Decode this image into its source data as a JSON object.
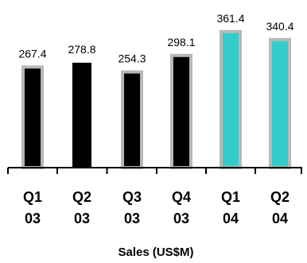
{
  "chart_data": {
    "type": "bar",
    "categories": [
      [
        "Q1",
        "03"
      ],
      [
        "Q2",
        "03"
      ],
      [
        "Q3",
        "03"
      ],
      [
        "Q4",
        "03"
      ],
      [
        "Q1",
        "04"
      ],
      [
        "Q2",
        "04"
      ]
    ],
    "values": [
      267.4,
      278.8,
      254.3,
      298.1,
      361.4,
      340.4
    ],
    "value_labels": [
      "267.4",
      "278.8",
      "254.3",
      "298.1",
      "361.4",
      "340.4"
    ],
    "bar_fills": [
      "#000000",
      "#000000",
      "#000000",
      "#000000",
      "#33CCCC",
      "#33CCCC"
    ],
    "bar_outlines": [
      "#B8B8B8",
      "none",
      "#B8B8B8",
      "#B8B8B8",
      "#B8B8B8",
      "#B8B8B8"
    ],
    "xlabel": "Sales (US$M)",
    "ylabel": "",
    "ylim": [
      0,
      380
    ],
    "grid": false,
    "legend": false
  }
}
